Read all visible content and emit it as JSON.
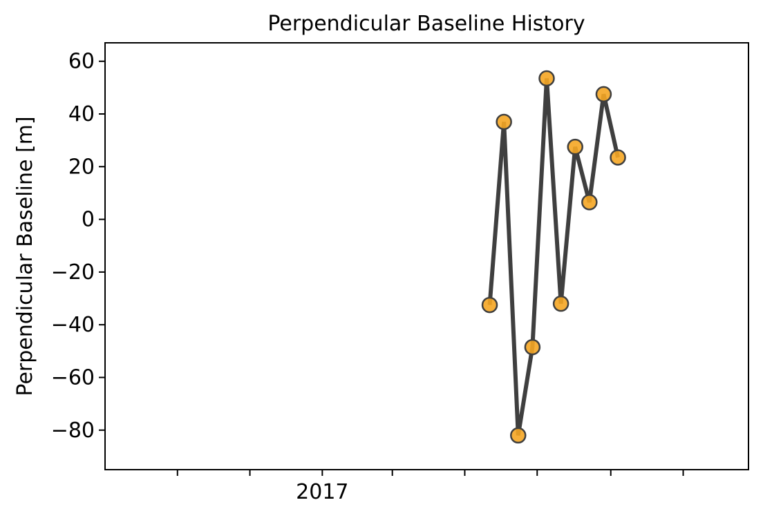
{
  "chart_data": {
    "type": "line",
    "title": "Perpendicular Baseline History",
    "xlabel": "",
    "ylabel": "Perpendicular Baseline [m]",
    "x_scale": "time",
    "xlim": [
      "2016-07-02",
      "2017-12-26"
    ],
    "ylim": [
      -95,
      67
    ],
    "yticks": [
      60,
      40,
      20,
      0,
      -20,
      -40,
      -60,
      -80
    ],
    "ytick_labels": [
      "60",
      "40",
      "20",
      "0",
      "−20",
      "−40",
      "−60",
      "−80"
    ],
    "xticks": [
      "2016-09-01",
      "2016-11-01",
      "2017-01-01",
      "2017-03-01",
      "2017-05-01",
      "2017-07-01",
      "2017-09-01",
      "2017-11-01"
    ],
    "xtick_labels": [
      "",
      "",
      "2017",
      "",
      "",
      "",
      "",
      ""
    ],
    "grid": false,
    "series": [
      {
        "x": [
          "2017-05-22",
          "2017-06-03",
          "2017-06-15",
          "2017-06-27",
          "2017-07-09",
          "2017-07-21",
          "2017-08-02",
          "2017-08-14",
          "2017-08-26",
          "2017-09-07"
        ],
        "y": [
          -32.5,
          37,
          -82,
          -48.5,
          53.5,
          -32,
          27.5,
          6.5,
          47.5,
          23.5
        ],
        "line_color": "#3f3f3f",
        "marker_color": "#f5a623"
      }
    ]
  }
}
